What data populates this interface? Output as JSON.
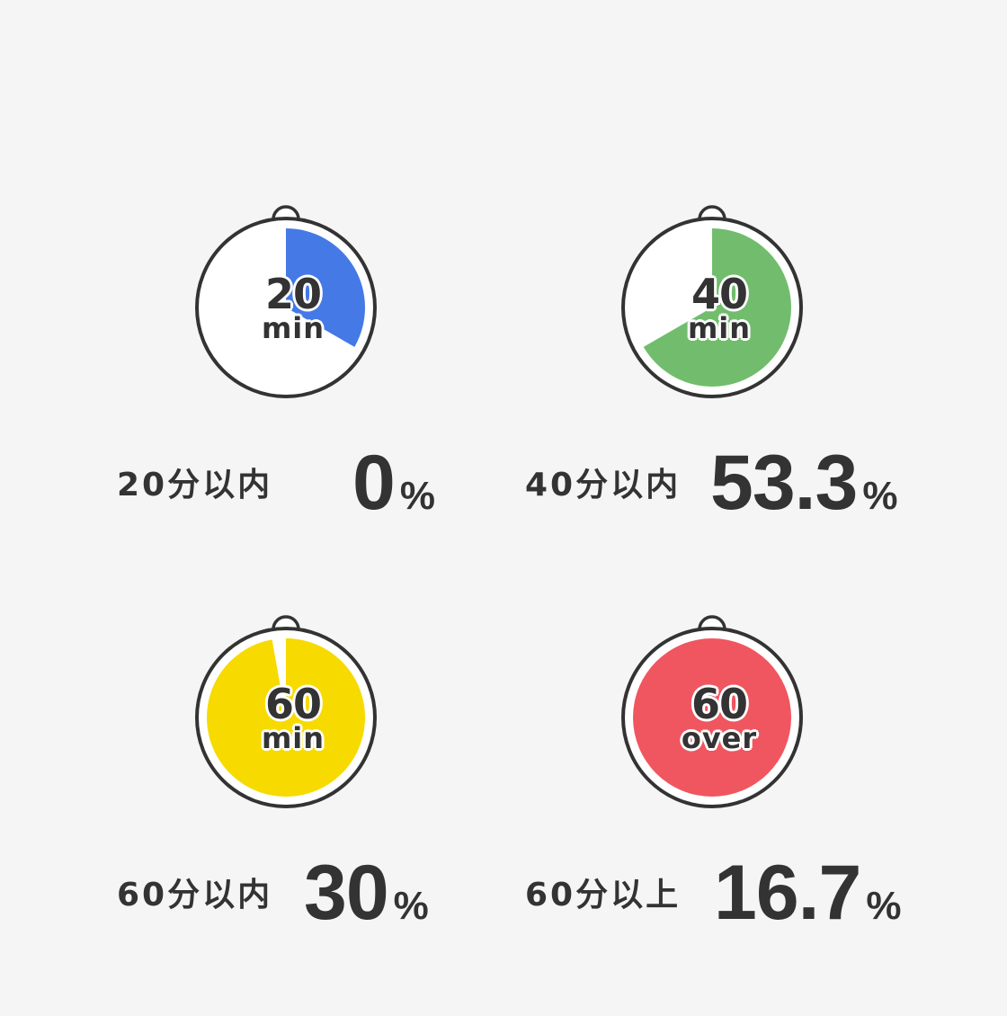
{
  "items": [
    {
      "number": "20",
      "unit": "min",
      "label": "20分以内",
      "value": "0",
      "percent_sign": "%",
      "fill_color": "#4479e6",
      "fill_fraction": 0.333
    },
    {
      "number": "40",
      "unit": "min",
      "label": "40分以内",
      "value": "53.3",
      "percent_sign": "%",
      "fill_color": "#71bd6d",
      "fill_fraction": 0.667
    },
    {
      "number": "60",
      "unit": "min",
      "label": "60分以内",
      "value": "30",
      "percent_sign": "%",
      "fill_color": "#f7da00",
      "fill_fraction": 0.972
    },
    {
      "number": "60",
      "unit": "over",
      "label": "60分以上",
      "value": "16.7",
      "percent_sign": "%",
      "fill_color": "#f0565f",
      "fill_fraction": 1.0
    }
  ],
  "colors": {
    "background": "#f5f5f5",
    "outline": "#333333",
    "face": "#ffffff"
  }
}
